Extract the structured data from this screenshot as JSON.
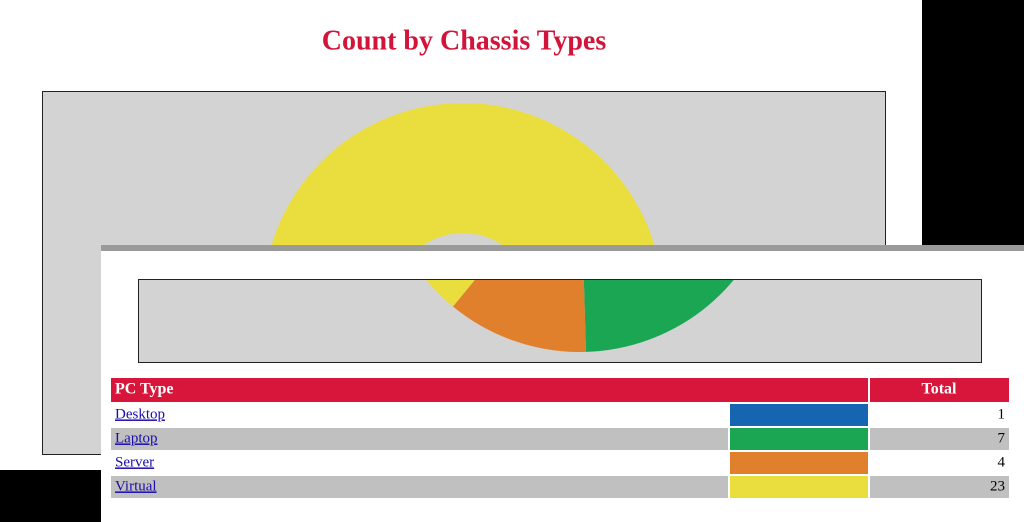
{
  "chart_data": {
    "type": "pie",
    "title": "Count by Chassis Types",
    "categories": [
      "Desktop",
      "Laptop",
      "Server",
      "Virtual"
    ],
    "values": [
      1,
      7,
      4,
      23
    ],
    "colors": [
      "#1565b0",
      "#1ba653",
      "#e07f2c",
      "#e9de3e"
    ]
  },
  "table": {
    "headers": [
      "PC Type",
      "Total"
    ]
  }
}
